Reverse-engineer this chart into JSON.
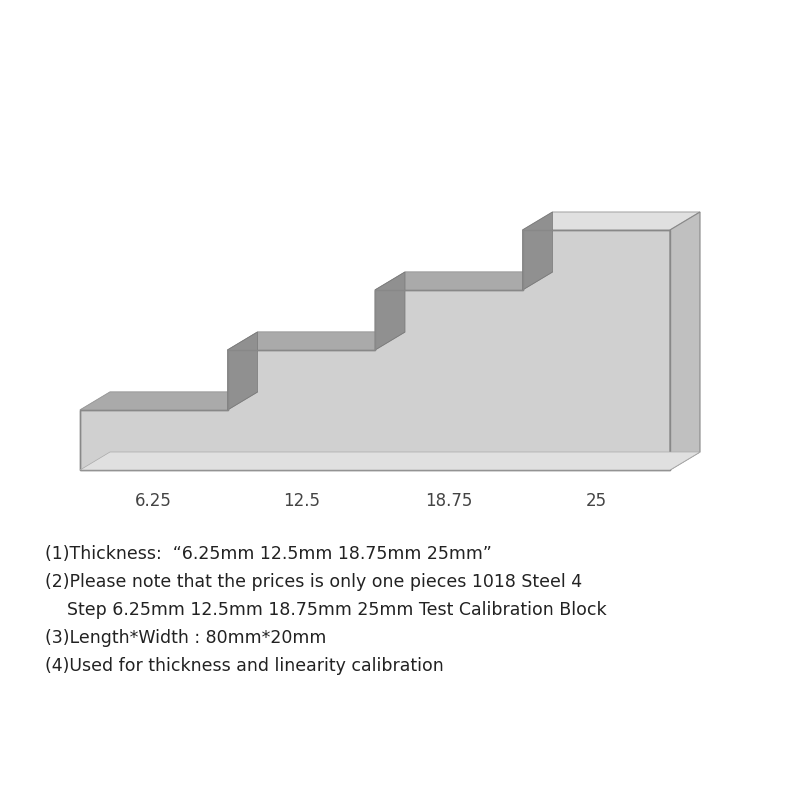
{
  "background_color": "#ffffff",
  "front_color": "#d0d0d0",
  "top_color": "#e0e0e0",
  "side_color": "#c0c0c0",
  "recess_color": "#909090",
  "recess_inner_color": "#aaaaaa",
  "step_labels": [
    "6.25",
    "12.5",
    "18.75",
    "25"
  ],
  "label_color": "#444444",
  "label_fontsize": 12,
  "text_lines": [
    "(1)Thickness:  “6.25mm 12.5mm 18.75mm 25mm”",
    "(2)Please note that the prices is only one pieces 1018 Steel 4",
    "    Step 6.25mm 12.5mm 18.75mm 25mm Test Calibration Block",
    "(3)Length*Width : 80mm*20mm",
    "(4)Used for thickness and linearity calibration"
  ],
  "text_fontsize": 12.5,
  "text_color": "#222222"
}
